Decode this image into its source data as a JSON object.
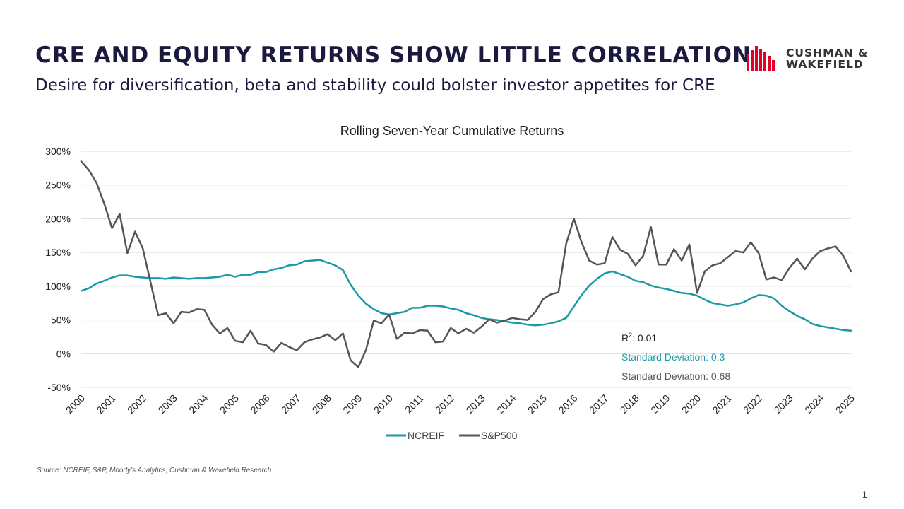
{
  "header": {
    "title": "CRE AND EQUITY RETURNS SHOW LITTLE CORRELATION",
    "subtitle": "Desire for diversification, beta and stability could bolster investor appetites for CRE"
  },
  "logo": {
    "line1": "CUSHMAN &",
    "line2": "WAKEFIELD"
  },
  "footer": {
    "source": "Source: NCREIF, S&P, Moody’s Analytics, Cushman & Wakefield Research",
    "page_number": "1"
  },
  "colors": {
    "ncreif": "#1a9aa6",
    "sp500": "#555555",
    "title": "#1b1a3e",
    "brand_red": "#e4002b"
  },
  "chart_data": {
    "type": "line",
    "title": "Rolling Seven-Year Cumulative Returns",
    "xlabel": "",
    "ylabel": "",
    "x_start": 2000.0,
    "x_step": 0.25,
    "xlim": [
      2000,
      2025
    ],
    "x_tick_labels": [
      "2000",
      "2001",
      "2002",
      "2003",
      "2004",
      "2005",
      "2006",
      "2007",
      "2008",
      "2009",
      "2010",
      "2011",
      "2012",
      "2013",
      "2014",
      "2015",
      "2016",
      "2017",
      "2018",
      "2019",
      "2020",
      "2021",
      "2022",
      "2023",
      "2024",
      "2025"
    ],
    "ylim": [
      -50,
      300
    ],
    "y_ticks": [
      -50,
      0,
      50,
      100,
      150,
      200,
      250,
      300
    ],
    "y_tick_labels": [
      "-50%",
      "0%",
      "50%",
      "100%",
      "150%",
      "200%",
      "250%",
      "300%"
    ],
    "grid": true,
    "legend_position": "bottom",
    "series": [
      {
        "name": "NCREIF",
        "values": [
          93,
          97,
          104,
          108,
          113,
          116,
          116,
          114,
          113,
          112,
          112,
          111,
          113,
          112,
          111,
          112,
          112,
          113,
          114,
          117,
          114,
          117,
          117,
          121,
          121,
          125,
          127,
          131,
          132,
          137,
          138,
          139,
          135,
          131,
          124,
          102,
          86,
          74,
          66,
          60,
          58,
          60,
          62,
          68,
          68,
          71,
          71,
          70,
          67,
          65,
          60,
          57,
          53,
          51,
          50,
          48,
          46,
          45,
          43,
          42,
          43,
          45,
          48,
          53,
          70,
          87,
          101,
          111,
          119,
          122,
          118,
          114,
          108,
          106,
          101,
          98,
          96,
          93,
          90,
          89,
          86,
          80,
          75,
          73,
          71,
          73,
          76,
          82,
          87,
          86,
          82,
          71,
          63,
          56,
          51,
          44,
          41,
          39,
          37,
          35,
          34
        ],
        "annotation": "Standard Deviation: 0.3"
      },
      {
        "name": "S&P500",
        "values": [
          285,
          272,
          253,
          222,
          186,
          207,
          149,
          181,
          156,
          106,
          57,
          60,
          45,
          62,
          61,
          66,
          65,
          43,
          30,
          38,
          19,
          17,
          34,
          15,
          13,
          3,
          16,
          10,
          5,
          17,
          21,
          24,
          29,
          20,
          30,
          -10,
          -20,
          6,
          49,
          45,
          58,
          22,
          31,
          30,
          35,
          34,
          17,
          18,
          38,
          30,
          37,
          31,
          40,
          51,
          46,
          49,
          53,
          51,
          50,
          62,
          81,
          88,
          91,
          163,
          200,
          165,
          138,
          132,
          134,
          173,
          154,
          148,
          131,
          145,
          188,
          132,
          132,
          155,
          138,
          162,
          90,
          122,
          131,
          134,
          143,
          152,
          150,
          165,
          149,
          110,
          113,
          109,
          127,
          141,
          125,
          141,
          152,
          156,
          159,
          145,
          122
        ],
        "annotation": "Standard Deviation: 0.68"
      }
    ],
    "r_squared_label": "R",
    "r_squared_superscript": "2",
    "r_squared_value": ": 0.01"
  }
}
